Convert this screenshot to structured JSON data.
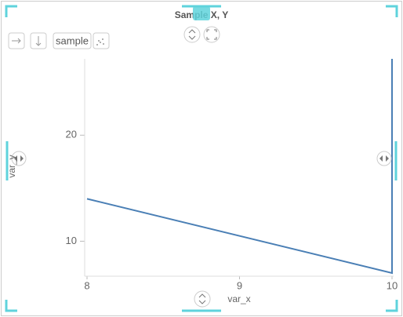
{
  "toolbar": {
    "label": "sample"
  },
  "chart_data": {
    "type": "line",
    "title": "Sample X, Y",
    "x_label": "var_x",
    "y_label": "var_y",
    "x": [
      8,
      10,
      10
    ],
    "series": [
      {
        "name": "var_y",
        "color": "#4a7fb5",
        "values": [
          14,
          7,
          27.2
        ]
      }
    ],
    "xlim": [
      8,
      10
    ],
    "xticks": [
      8,
      9,
      10
    ],
    "ylim": [
      6.7,
      27.2
    ],
    "yticks": [
      10,
      20
    ],
    "grid": false
  }
}
